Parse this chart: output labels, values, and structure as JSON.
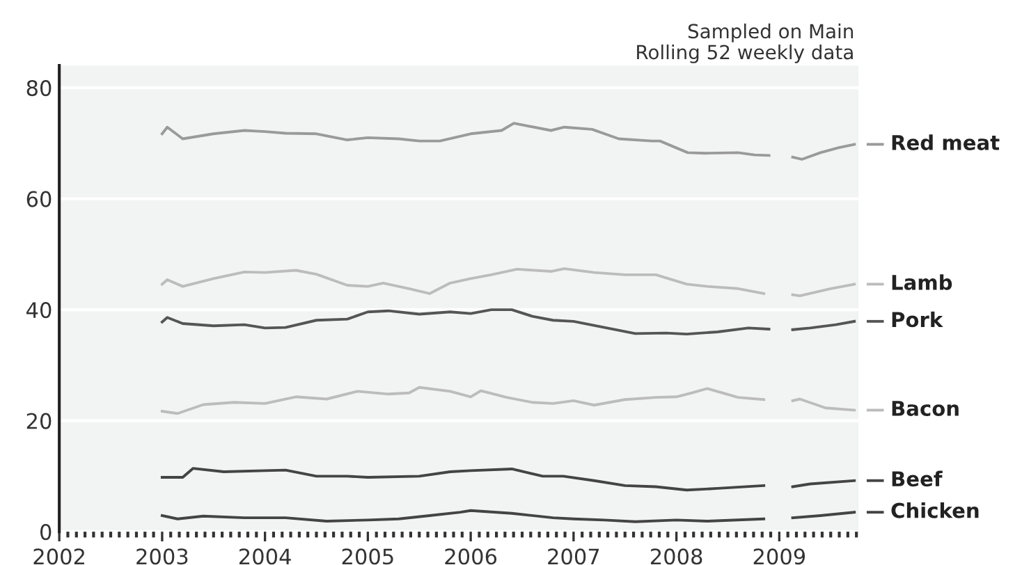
{
  "chart_data": {
    "type": "line",
    "annotations": [
      "Sampled on Main",
      "Rolling 52 weekly data"
    ],
    "xlim": [
      2002,
      2009.77
    ],
    "xticks": [
      2002,
      2003,
      2004,
      2005,
      2006,
      2007,
      2008,
      2009
    ],
    "ylim": [
      0,
      84
    ],
    "yticks": [
      0,
      20,
      40,
      60,
      80
    ],
    "grid": "y",
    "legend": "right",
    "marker": "none",
    "line_style": "solid",
    "series": [
      {
        "name": "Red meat",
        "color": "#9a9a9a",
        "x": [
          2003.0,
          2003.05,
          2003.2,
          2003.5,
          2003.8,
          2004.0,
          2004.2,
          2004.5,
          2004.8,
          2005.0,
          2005.3,
          2005.5,
          2005.7,
          2006.0,
          2006.3,
          2006.42,
          2006.78,
          2006.91,
          2007.18,
          2007.44,
          2007.76,
          2007.84,
          2008.11,
          2008.29,
          2008.6,
          2008.76,
          2008.9,
          2009.03,
          2009.13,
          2009.22,
          2009.4,
          2009.58,
          2009.73
        ],
        "values": [
          71.7,
          72.9,
          70.8,
          71.7,
          72.3,
          72.1,
          71.8,
          71.7,
          70.6,
          71.0,
          70.8,
          70.4,
          70.4,
          71.7,
          72.3,
          73.6,
          72.3,
          72.9,
          72.5,
          70.8,
          70.4,
          70.4,
          68.3,
          68.2,
          68.3,
          67.9,
          67.8,
          null,
          67.5,
          67.1,
          68.3,
          69.2,
          69.8
        ]
      },
      {
        "name": "Lamb",
        "color": "#bcbcbc",
        "x": [
          2003.0,
          2003.05,
          2003.2,
          2003.5,
          2003.8,
          2004.0,
          2004.3,
          2004.5,
          2004.8,
          2005.0,
          2005.15,
          2005.4,
          2005.6,
          2005.8,
          2006.0,
          2006.2,
          2006.45,
          2006.78,
          2006.91,
          2007.2,
          2007.5,
          2007.8,
          2008.1,
          2008.3,
          2008.6,
          2008.85,
          2009.03,
          2009.13,
          2009.2,
          2009.5,
          2009.73
        ],
        "values": [
          44.6,
          45.4,
          44.2,
          45.6,
          46.8,
          46.7,
          47.1,
          46.4,
          44.4,
          44.2,
          44.8,
          43.8,
          42.9,
          44.8,
          45.6,
          46.3,
          47.3,
          46.9,
          47.4,
          46.7,
          46.3,
          46.3,
          44.6,
          44.2,
          43.8,
          42.9,
          null,
          42.7,
          42.5,
          43.8,
          44.6
        ]
      },
      {
        "name": "Pork",
        "color": "#555555",
        "x": [
          2003.0,
          2003.05,
          2003.2,
          2003.5,
          2003.8,
          2004.0,
          2004.2,
          2004.5,
          2004.8,
          2005.0,
          2005.2,
          2005.5,
          2005.8,
          2006.0,
          2006.2,
          2006.4,
          2006.6,
          2006.8,
          2007.0,
          2007.3,
          2007.6,
          2007.9,
          2008.1,
          2008.4,
          2008.7,
          2008.9,
          2009.03,
          2009.13,
          2009.3,
          2009.55,
          2009.73
        ],
        "values": [
          37.8,
          38.6,
          37.5,
          37.1,
          37.3,
          36.7,
          36.8,
          38.1,
          38.3,
          39.6,
          39.8,
          39.2,
          39.6,
          39.3,
          40.0,
          40.0,
          38.8,
          38.1,
          37.9,
          36.8,
          35.7,
          35.8,
          35.6,
          36.0,
          36.7,
          36.5,
          null,
          36.4,
          36.7,
          37.3,
          37.9
        ]
      },
      {
        "name": "Bacon",
        "color": "#bcbcbc",
        "x": [
          2003.0,
          2003.15,
          2003.4,
          2003.7,
          2004.0,
          2004.3,
          2004.6,
          2004.9,
          2005.2,
          2005.4,
          2005.5,
          2005.8,
          2006.0,
          2006.1,
          2006.35,
          2006.6,
          2006.8,
          2007.0,
          2007.2,
          2007.5,
          2007.8,
          2008.0,
          2008.15,
          2008.3,
          2008.6,
          2008.85,
          2009.03,
          2009.13,
          2009.2,
          2009.45,
          2009.73
        ],
        "values": [
          21.7,
          21.3,
          22.9,
          23.3,
          23.1,
          24.3,
          23.9,
          25.3,
          24.8,
          25.0,
          26.0,
          25.3,
          24.3,
          25.4,
          24.2,
          23.3,
          23.1,
          23.6,
          22.8,
          23.8,
          24.2,
          24.3,
          25.0,
          25.8,
          24.2,
          23.8,
          null,
          23.6,
          23.9,
          22.3,
          21.9
        ]
      },
      {
        "name": "Beef",
        "color": "#444444",
        "x": [
          2003.0,
          2003.2,
          2003.3,
          2003.6,
          2004.0,
          2004.2,
          2004.5,
          2004.8,
          2005.0,
          2005.5,
          2005.8,
          2006.0,
          2006.4,
          2006.7,
          2006.9,
          2007.2,
          2007.5,
          2007.8,
          2008.1,
          2008.4,
          2008.85,
          2009.03,
          2009.13,
          2009.3,
          2009.73
        ],
        "values": [
          9.8,
          9.8,
          11.4,
          10.8,
          11.0,
          11.1,
          10.0,
          10.0,
          9.8,
          10.0,
          10.8,
          11.0,
          11.3,
          10.0,
          10.0,
          9.2,
          8.3,
          8.1,
          7.5,
          7.8,
          8.3,
          null,
          8.1,
          8.6,
          9.2
        ]
      },
      {
        "name": "Chicken",
        "color": "#444444",
        "x": [
          2003.0,
          2003.15,
          2003.4,
          2003.8,
          2004.2,
          2004.6,
          2005.0,
          2005.3,
          2005.6,
          2005.9,
          2006.0,
          2006.4,
          2006.8,
          2007.0,
          2007.3,
          2007.6,
          2008.0,
          2008.3,
          2008.85,
          2009.03,
          2009.13,
          2009.4,
          2009.73
        ],
        "values": [
          2.9,
          2.3,
          2.8,
          2.5,
          2.5,
          1.9,
          2.1,
          2.3,
          2.9,
          3.5,
          3.8,
          3.3,
          2.5,
          2.3,
          2.1,
          1.8,
          2.1,
          1.9,
          2.3,
          null,
          2.5,
          2.9,
          3.5
        ]
      }
    ]
  }
}
